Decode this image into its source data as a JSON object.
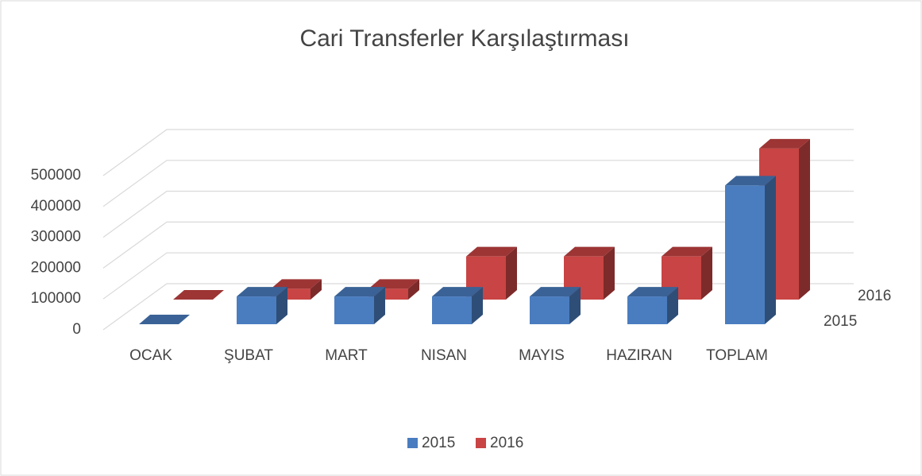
{
  "chart_data": {
    "type": "bar3d",
    "title": "Cari Transferler Karşılaştırması",
    "categories": [
      "OCAK",
      "ŞUBAT",
      "MART",
      "NISAN",
      "MAYIS",
      "HAZIRAN",
      "TOPLAM"
    ],
    "series": [
      {
        "name": "2015",
        "color": "#4a7dc0",
        "values": [
          0,
          90000,
          90000,
          90000,
          90000,
          90000,
          450000
        ]
      },
      {
        "name": "2016",
        "color": "#c94444",
        "values": [
          0,
          35000,
          35000,
          140000,
          140000,
          140000,
          490000
        ]
      }
    ],
    "ylim": [
      0,
      500000
    ],
    "yticks": [
      0,
      100000,
      200000,
      300000,
      400000,
      500000
    ],
    "grid": true,
    "legend": "bottom"
  }
}
